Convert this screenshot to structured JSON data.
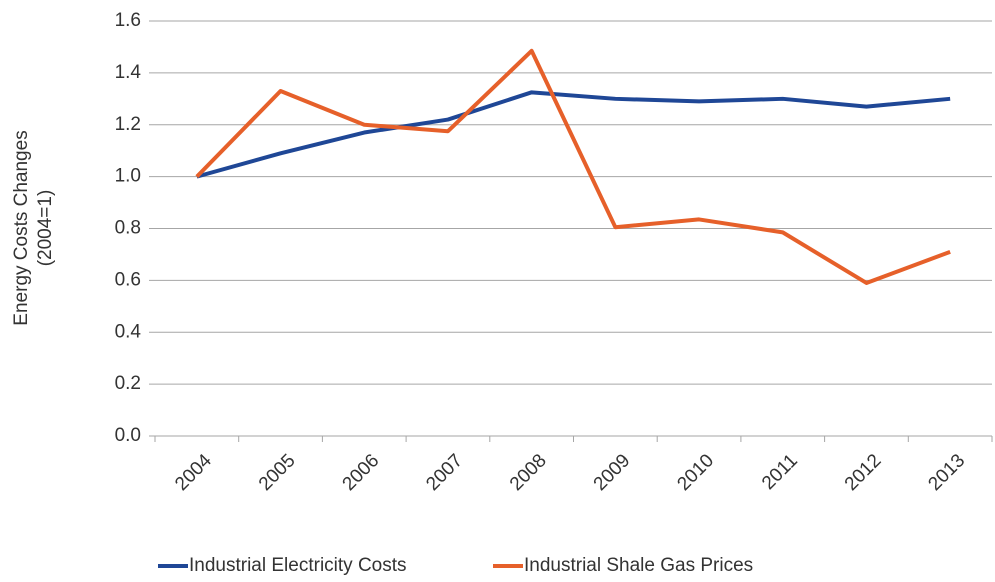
{
  "chart_data": {
    "type": "line",
    "ylabel": [
      "Energy Costs Changes",
      "(2004=1)"
    ],
    "categories": [
      "2004",
      "2005",
      "2006",
      "2007",
      "2008",
      "2009",
      "2010",
      "2011",
      "2012",
      "2013"
    ],
    "series": [
      {
        "name": "Industrial Electricity Costs",
        "color": "#1f4796",
        "values": [
          1.0,
          1.09,
          1.17,
          1.22,
          1.325,
          1.3,
          1.29,
          1.3,
          1.27,
          1.3
        ]
      },
      {
        "name": "Industrial Shale Gas Prices",
        "color": "#e6602a",
        "values": [
          1.0,
          1.33,
          1.2,
          1.175,
          1.485,
          0.805,
          0.835,
          0.785,
          0.59,
          0.71
        ]
      }
    ],
    "ylim": [
      0,
      1.6
    ],
    "yticks": [
      {
        "value": 0,
        "label": "0.0"
      },
      0.2,
      0.4,
      0.6,
      0.8,
      {
        "value": 1,
        "label": "1.0"
      },
      1.2,
      1.4,
      1.6
    ],
    "grid": true,
    "legend": "bottom"
  }
}
